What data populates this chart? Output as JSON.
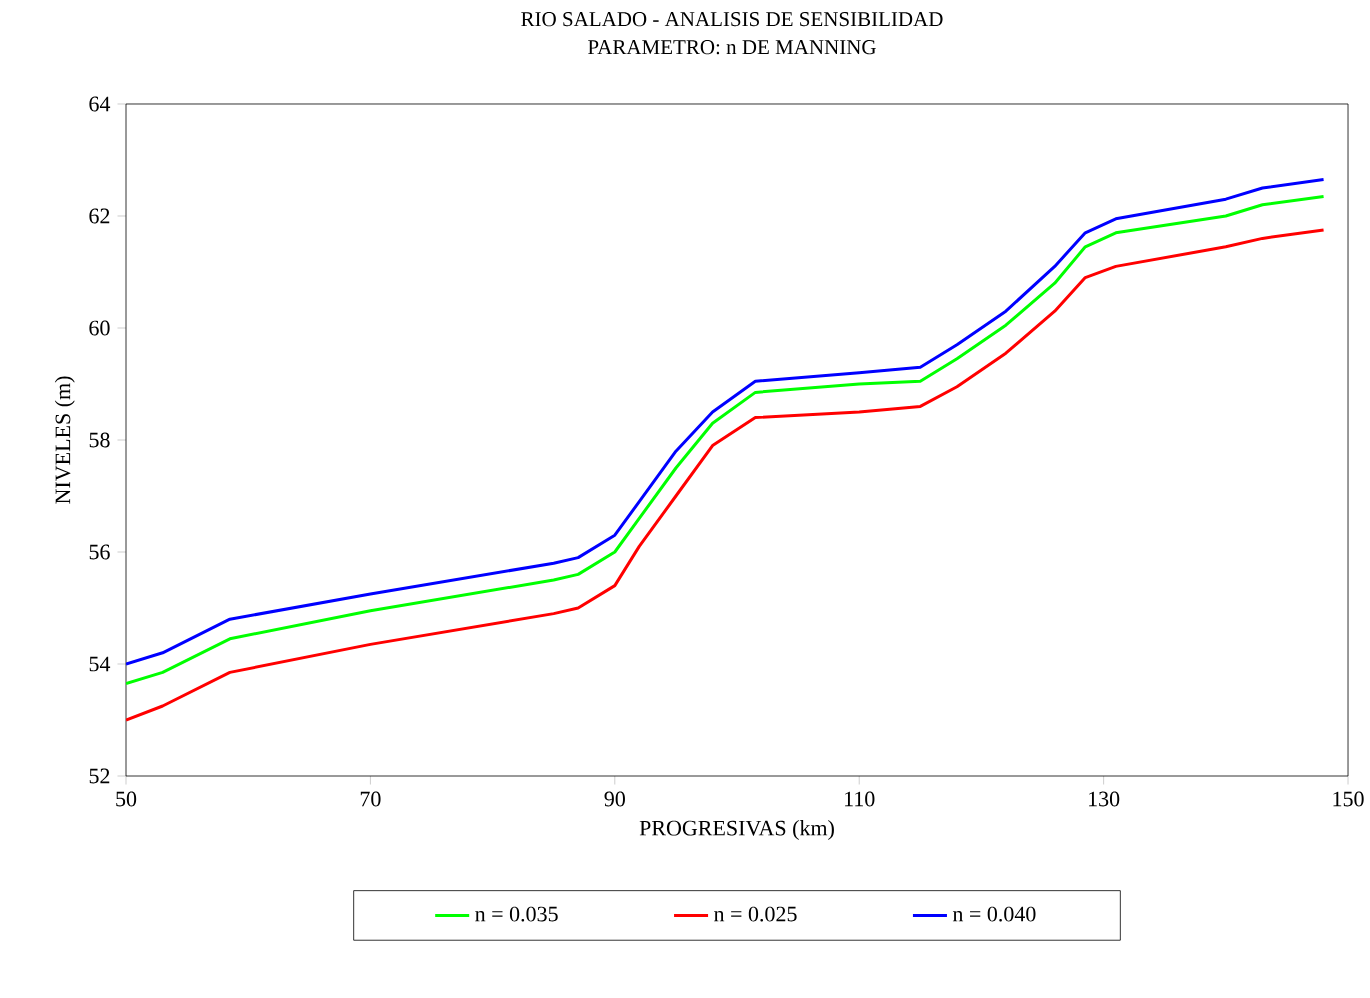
{
  "chart_data": {
    "type": "line",
    "title": "RIO SALADO - ANALISIS DE SENSIBILIDAD",
    "subtitle": "PARAMETRO:  n DE MANNING",
    "xlabel": "PROGRESIVAS  (km)",
    "ylabel": "NIVELES (m)",
    "x": [
      50,
      53,
      58.5,
      70,
      85,
      87,
      90,
      92,
      95,
      98,
      101.5,
      110,
      115,
      118,
      122,
      126,
      128.5,
      131,
      140,
      143,
      148
    ],
    "series": [
      {
        "name": "n = 0.035",
        "color": "#00ff00",
        "values": [
          53.65,
          53.85,
          54.45,
          54.95,
          55.5,
          55.6,
          56.0,
          56.6,
          57.5,
          58.3,
          58.85,
          59.0,
          59.05,
          59.45,
          60.05,
          60.8,
          61.45,
          61.7,
          62.0,
          62.2,
          62.35
        ]
      },
      {
        "name": "n = 0.025",
        "color": "#ff0000",
        "values": [
          53.0,
          53.25,
          53.85,
          54.35,
          54.9,
          55.0,
          55.4,
          56.1,
          57.0,
          57.9,
          58.4,
          58.5,
          58.6,
          58.95,
          59.55,
          60.3,
          60.9,
          61.1,
          61.45,
          61.6,
          61.75
        ]
      },
      {
        "name": "n = 0.040",
        "color": "#0000ff",
        "values": [
          54.0,
          54.2,
          54.8,
          55.25,
          55.8,
          55.9,
          56.3,
          56.9,
          57.8,
          58.5,
          59.05,
          59.2,
          59.3,
          59.7,
          60.3,
          61.1,
          61.7,
          61.95,
          62.3,
          62.5,
          62.65
        ]
      }
    ],
    "xlim": [
      50,
      150
    ],
    "xticks": [
      50,
      70,
      90,
      110,
      130,
      150
    ],
    "ylim": [
      52,
      64
    ],
    "yticks": [
      52,
      54,
      56,
      58,
      60,
      62,
      64
    ],
    "grid": false,
    "legend": "bottom",
    "marker": "none",
    "line_style": "solid"
  }
}
